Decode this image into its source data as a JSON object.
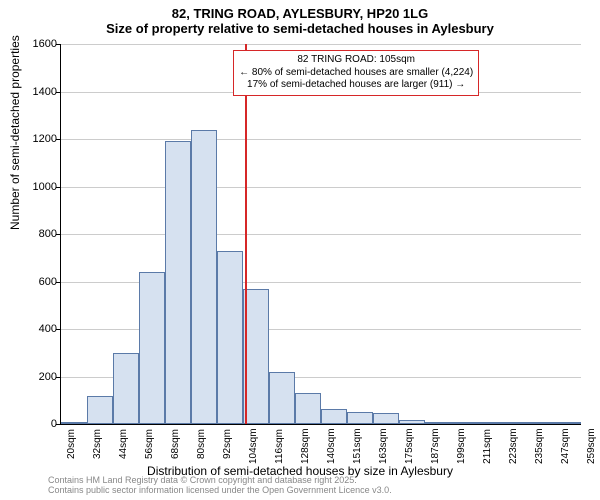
{
  "title_main": "82, TRING ROAD, AYLESBURY, HP20 1LG",
  "title_sub": "Size of property relative to semi-detached houses in Aylesbury",
  "ylabel": "Number of semi-detached properties",
  "xlabel": "Distribution of semi-detached houses by size in Aylesbury",
  "footnote_line1": "Contains HM Land Registry data © Crown copyright and database right 2025.",
  "footnote_line2": "Contains public sector information licensed under the Open Government Licence v3.0.",
  "annotation": {
    "line1": "← 80% of semi-detached houses are smaller (4,224)",
    "line2": "17% of semi-detached houses are larger (911) →",
    "title": "82 TRING ROAD: 105sqm"
  },
  "chart": {
    "type": "histogram",
    "background_color": "#ffffff",
    "grid_color": "#cccccc",
    "bar_fill": "#d6e1f0",
    "bar_border": "#5b7aa8",
    "refline_color": "#d62728",
    "refline_x_value": 105,
    "ymax": 1600,
    "ytick_step": 200,
    "yticks": [
      0,
      200,
      400,
      600,
      800,
      1000,
      1200,
      1400,
      1600
    ],
    "x_start": 20,
    "x_end": 260,
    "bin_width_sqm": 12,
    "xtick_labels": [
      "20sqm",
      "32sqm",
      "44sqm",
      "56sqm",
      "68sqm",
      "80sqm",
      "92sqm",
      "104sqm",
      "116sqm",
      "128sqm",
      "140sqm",
      "151sqm",
      "163sqm",
      "175sqm",
      "187sqm",
      "199sqm",
      "211sqm",
      "223sqm",
      "235sqm",
      "247sqm",
      "259sqm"
    ],
    "values": [
      0,
      120,
      300,
      640,
      1190,
      1240,
      730,
      570,
      220,
      130,
      65,
      50,
      45,
      15,
      5,
      5,
      10,
      5,
      10,
      5
    ],
    "title_fontsize": 13,
    "label_fontsize": 12,
    "tick_fontsize": 11
  }
}
